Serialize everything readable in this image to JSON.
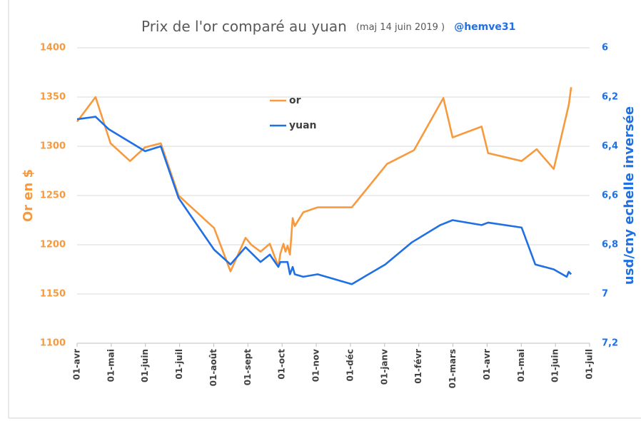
{
  "chart_data": {
    "type": "line",
    "title": "Prix de l'or comparé au yuan",
    "subtitle": "(maj 14 juin 2019 )",
    "author": "@hemve31",
    "ylabel": "Or en $",
    "y2label": "usd/cny echelle inversée",
    "grid": true,
    "legend": "top-center",
    "xlim": [
      0,
      15
    ],
    "xticks": [
      {
        "value": 0,
        "label": "01-avr"
      },
      {
        "value": 1,
        "label": "01-mai"
      },
      {
        "value": 2,
        "label": "01-juin"
      },
      {
        "value": 3,
        "label": "01-juil"
      },
      {
        "value": 4,
        "label": "01-août"
      },
      {
        "value": 5,
        "label": "01-sept"
      },
      {
        "value": 6,
        "label": "01-oct"
      },
      {
        "value": 7,
        "label": "01-nov"
      },
      {
        "value": 8,
        "label": "01-déc"
      },
      {
        "value": 9,
        "label": "01-janv"
      },
      {
        "value": 10,
        "label": "01-févr"
      },
      {
        "value": 11,
        "label": "01-mars"
      },
      {
        "value": 12,
        "label": "01-avr"
      },
      {
        "value": 13,
        "label": "01-mai"
      },
      {
        "value": 14,
        "label": "01-juin"
      },
      {
        "value": 15,
        "label": "01-juil"
      }
    ],
    "ylim": [
      1100,
      1400
    ],
    "yticks": [
      1100,
      1150,
      1200,
      1250,
      1300,
      1350,
      1400
    ],
    "y2lim": [
      7.2,
      6
    ],
    "y2ticks": [
      6,
      {
        "value": 6.2,
        "label": "6,2"
      },
      {
        "value": 6.4,
        "label": "6,4"
      },
      {
        "value": 6.6,
        "label": "6,6"
      },
      {
        "value": 6.8,
        "label": "6,8"
      },
      7,
      {
        "value": 7.2,
        "label": "7,2"
      }
    ],
    "series": [
      {
        "name": "or",
        "color": "#f79a3e",
        "x": [
          0,
          0.54,
          0.98,
          1.55,
          1.99,
          2.45,
          2.97,
          4.01,
          4.49,
          4.93,
          5.1,
          5.37,
          5.64,
          5.89,
          5.95,
          6.04,
          6.1,
          6.16,
          6.23,
          6.31,
          6.37,
          6.62,
          7.04,
          8.04,
          9.07,
          9.86,
          10.72,
          10.99,
          11.84,
          12.03,
          13.01,
          13.45,
          13.95,
          14.39,
          14.46
        ],
        "values": [
          1325,
          1350,
          1303,
          1285,
          1299,
          1303,
          1250,
          1217,
          1173,
          1207,
          1200,
          1193,
          1201,
          1178,
          1191,
          1201,
          1193,
          1199,
          1190,
          1227,
          1219,
          1233,
          1238,
          1238,
          1282,
          1296,
          1349,
          1309,
          1320,
          1293,
          1285,
          1297,
          1277,
          1342,
          1360
        ]
      },
      {
        "name": "yuan",
        "color": "#1f6fe5",
        "axis": "y2",
        "x": [
          0,
          0.54,
          0.92,
          1.99,
          2.45,
          2.97,
          4.01,
          4.49,
          4.93,
          5.37,
          5.64,
          5.89,
          5.95,
          6.1,
          6.16,
          6.23,
          6.31,
          6.37,
          6.62,
          7.04,
          8.04,
          9.02,
          9.8,
          10.63,
          10.99,
          11.84,
          12.03,
          13.01,
          13.41,
          13.95,
          14.33,
          14.39,
          14.46
        ],
        "values": [
          6.29,
          6.28,
          6.33,
          6.42,
          6.4,
          6.61,
          6.82,
          6.88,
          6.81,
          6.87,
          6.84,
          6.89,
          6.87,
          6.87,
          6.87,
          6.92,
          6.89,
          6.92,
          6.93,
          6.92,
          6.96,
          6.88,
          6.79,
          6.72,
          6.7,
          6.72,
          6.71,
          6.73,
          6.88,
          6.9,
          6.93,
          6.91,
          6.92
        ]
      }
    ]
  }
}
